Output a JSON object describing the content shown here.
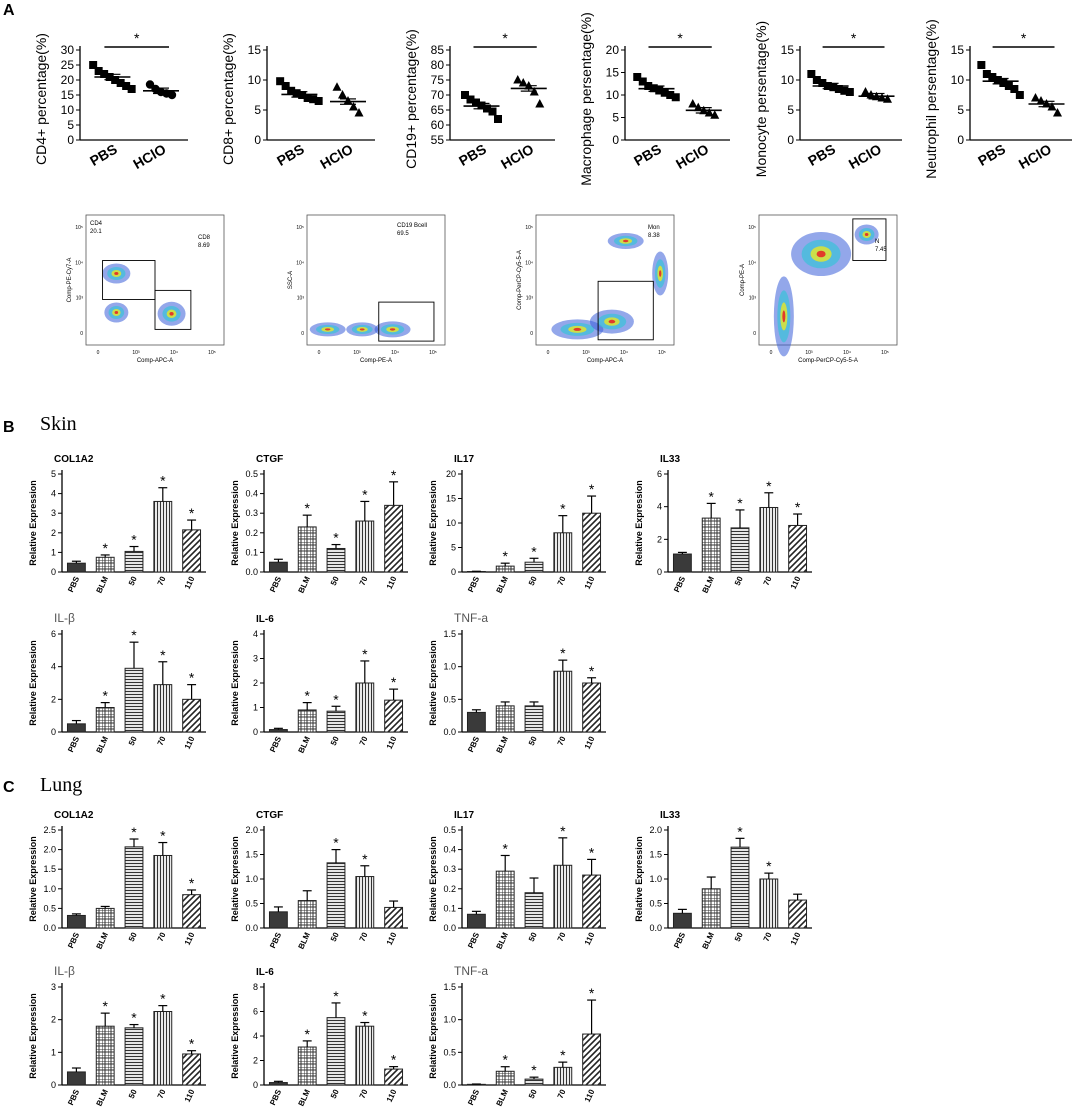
{
  "panel_labels": {
    "A": "A",
    "B": "B",
    "C": "C"
  },
  "sections": {
    "skin": "Skin",
    "lung": "Lung"
  },
  "colors": {
    "bar": "#3a3a3a",
    "axis": "#000000"
  },
  "flow_plots": [
    {
      "xlabel": "Comp-APC-A",
      "ylabel": "Comp-PE-Cy7-A",
      "gates": [
        {
          "name": "CD4",
          "value": "20.1"
        },
        {
          "name": "CD8",
          "value": "8.69"
        }
      ]
    },
    {
      "xlabel": "Comp-PE-A",
      "ylabel": "SSC-A",
      "gates": [
        {
          "name": "CD19 Bcell",
          "value": "69.5"
        }
      ]
    },
    {
      "xlabel": "Comp-APC-A",
      "ylabel": "Comp-PerCP-Cy5-5-A",
      "gates": [
        {
          "name": "Mon",
          "value": "8.38"
        }
      ]
    },
    {
      "xlabel": "Comp-PerCP-Cy5-5-A",
      "ylabel": "Comp-PE-A",
      "gates": [
        {
          "name": "N",
          "value": "7.45"
        }
      ]
    }
  ],
  "chart_data": [
    {
      "type": "scatter",
      "panel": "A",
      "ylabel": "CD4+ percentage(%)",
      "categories": [
        "PBS",
        "HClO"
      ],
      "ylim": [
        0,
        30
      ],
      "ticks": [
        0,
        5,
        10,
        15,
        20,
        25,
        30
      ],
      "significance": "*",
      "series": [
        {
          "name": "PBS",
          "marker": "square",
          "values": [
            25,
            23,
            22,
            21,
            20,
            19,
            18,
            17
          ],
          "mean": 21
        },
        {
          "name": "HClO",
          "marker": "circle",
          "values": [
            18.5,
            17,
            16,
            15.5,
            15
          ],
          "mean": 16.4
        }
      ]
    },
    {
      "type": "scatter",
      "panel": "A",
      "ylabel": "CD8+ percentage(%)",
      "categories": [
        "PBS",
        "HClO"
      ],
      "ylim": [
        0,
        15
      ],
      "ticks": [
        0,
        5,
        10,
        15
      ],
      "significance": "",
      "series": [
        {
          "name": "PBS",
          "marker": "square",
          "values": [
            9.8,
            9,
            8.2,
            7.8,
            7.5,
            7,
            6.8,
            6.5
          ],
          "mean": 7.6
        },
        {
          "name": "HClO",
          "marker": "triangle",
          "values": [
            8.8,
            7.5,
            6.5,
            5.5,
            4.5
          ],
          "mean": 6.4
        }
      ]
    },
    {
      "type": "scatter",
      "panel": "A",
      "ylabel": "CD19+ percentage(%)",
      "categories": [
        "PBS",
        "HClO"
      ],
      "ylim": [
        55,
        85
      ],
      "ticks": [
        55,
        60,
        65,
        70,
        75,
        80,
        85
      ],
      "significance": "*",
      "series": [
        {
          "name": "PBS",
          "marker": "square",
          "values": [
            70,
            68.5,
            67.5,
            66.5,
            65.5,
            64.5,
            62
          ],
          "mean": 66.3
        },
        {
          "name": "HClO",
          "marker": "triangle",
          "values": [
            75,
            74,
            73,
            71,
            67
          ],
          "mean": 72.2
        }
      ]
    },
    {
      "type": "scatter",
      "panel": "A",
      "ylabel": "Macrophage persentage(%)",
      "categories": [
        "PBS",
        "HClO"
      ],
      "ylim": [
        0,
        20
      ],
      "ticks": [
        0,
        5,
        10,
        15,
        20
      ],
      "significance": "*",
      "series": [
        {
          "name": "PBS",
          "marker": "square",
          "values": [
            14,
            13,
            12,
            11.5,
            11,
            10.5,
            10,
            9.5
          ],
          "mean": 11.4
        },
        {
          "name": "HClO",
          "marker": "triangle",
          "values": [
            8,
            7.2,
            6.5,
            6,
            5.5
          ],
          "mean": 6.6
        }
      ]
    },
    {
      "type": "scatter",
      "panel": "A",
      "ylabel": "Monocyte persentage(%)",
      "categories": [
        "PBS",
        "HClO"
      ],
      "ylim": [
        0,
        15
      ],
      "ticks": [
        0,
        5,
        10,
        15
      ],
      "significance": "*",
      "series": [
        {
          "name": "PBS",
          "marker": "square",
          "values": [
            11,
            10,
            9.5,
            9,
            8.8,
            8.5,
            8.2,
            8
          ],
          "mean": 9
        },
        {
          "name": "HClO",
          "marker": "triangle",
          "values": [
            8,
            7.5,
            7.2,
            7,
            6.8
          ],
          "mean": 7.3
        }
      ]
    },
    {
      "type": "scatter",
      "panel": "A",
      "ylabel": "Neutrophil persentage(%)",
      "categories": [
        "PBS",
        "HClO"
      ],
      "ylim": [
        0,
        15
      ],
      "ticks": [
        0,
        5,
        10,
        15
      ],
      "significance": "*",
      "series": [
        {
          "name": "PBS",
          "marker": "square",
          "values": [
            12.5,
            11,
            10.5,
            10,
            9.5,
            9,
            8.5,
            7.5
          ],
          "mean": 9.8
        },
        {
          "name": "HClO",
          "marker": "triangle",
          "values": [
            7,
            6.5,
            6,
            5.5,
            4.5
          ],
          "mean": 6
        }
      ]
    },
    {
      "type": "bar",
      "panel": "B",
      "title": "COL1A2",
      "title_style": "sans",
      "ylabel": "Relative Expression",
      "categories": [
        "PBS",
        "BLM",
        "50",
        "70",
        "110"
      ],
      "values": [
        0.45,
        0.75,
        1.05,
        3.6,
        2.15
      ],
      "errors": [
        0.1,
        0.12,
        0.25,
        0.7,
        0.5
      ],
      "ylim": [
        0,
        5
      ],
      "ticks": [
        0,
        1,
        2,
        3,
        4,
        5
      ],
      "significance": [
        "",
        "*",
        "*",
        "*",
        "*"
      ]
    },
    {
      "type": "bar",
      "panel": "B",
      "title": "CTGF",
      "title_style": "sans",
      "ylabel": "Relative Expression",
      "categories": [
        "PBS",
        "BLM",
        "50",
        "70",
        "110"
      ],
      "values": [
        0.05,
        0.23,
        0.12,
        0.26,
        0.34
      ],
      "errors": [
        0.015,
        0.06,
        0.02,
        0.1,
        0.12
      ],
      "ylim": [
        0,
        0.5
      ],
      "ticks": [
        0,
        0.1,
        0.2,
        0.3,
        0.4,
        0.5
      ],
      "significance": [
        "",
        "*",
        "*",
        "*",
        "*"
      ]
    },
    {
      "type": "bar",
      "panel": "B",
      "title": "IL17",
      "title_style": "sans",
      "ylabel": "Relative Expression",
      "categories": [
        "PBS",
        "BLM",
        "50",
        "70",
        "110"
      ],
      "values": [
        0.1,
        1.2,
        2,
        8,
        12
      ],
      "errors": [
        0.05,
        0.6,
        0.8,
        3.5,
        3.5
      ],
      "ylim": [
        0,
        20
      ],
      "ticks": [
        0,
        5,
        10,
        15,
        20
      ],
      "significance": [
        "",
        "*",
        "*",
        "*",
        "*"
      ]
    },
    {
      "type": "bar",
      "panel": "B",
      "title": "IL33",
      "title_style": "sans",
      "ylabel": "Relative Expression",
      "categories": [
        "PBS",
        "BLM",
        "50",
        "70",
        "110"
      ],
      "values": [
        1.1,
        3.3,
        2.7,
        3.95,
        2.85
      ],
      "errors": [
        0.1,
        0.9,
        1.1,
        0.9,
        0.7
      ],
      "ylim": [
        0,
        6
      ],
      "ticks": [
        0,
        2,
        4,
        6
      ],
      "significance": [
        "",
        "*",
        "*",
        "*",
        "*"
      ]
    },
    {
      "type": "bar",
      "panel": "B",
      "title": "IL-β",
      "title_style": "serif",
      "ylabel": "Relative Expression",
      "categories": [
        "PBS",
        "BLM",
        "50",
        "70",
        "110"
      ],
      "values": [
        0.5,
        1.5,
        3.9,
        2.9,
        2
      ],
      "errors": [
        0.2,
        0.3,
        1.6,
        1.4,
        0.9
      ],
      "ylim": [
        0,
        6
      ],
      "ticks": [
        0,
        2,
        4,
        6
      ],
      "significance": [
        "",
        "*",
        "*",
        "*",
        "*"
      ]
    },
    {
      "type": "bar",
      "panel": "B",
      "title": "IL-6",
      "title_style": "sans",
      "ylabel": "Relative Expression",
      "categories": [
        "PBS",
        "BLM",
        "50",
        "70",
        "110"
      ],
      "values": [
        0.1,
        0.9,
        0.85,
        2,
        1.3
      ],
      "errors": [
        0.05,
        0.3,
        0.2,
        0.9,
        0.45
      ],
      "ylim": [
        0,
        4
      ],
      "ticks": [
        0,
        1,
        2,
        3,
        4
      ],
      "significance": [
        "",
        "*",
        "*",
        "*",
        "*"
      ]
    },
    {
      "type": "bar",
      "panel": "B",
      "title": "TNF-a",
      "title_style": "serif",
      "ylabel": "Relative Expression",
      "categories": [
        "PBS",
        "BLM",
        "50",
        "70",
        "110"
      ],
      "values": [
        0.3,
        0.4,
        0.4,
        0.93,
        0.75
      ],
      "errors": [
        0.04,
        0.06,
        0.06,
        0.17,
        0.08
      ],
      "ylim": [
        0,
        1.5
      ],
      "ticks": [
        0,
        0.5,
        1.0,
        1.5
      ],
      "significance": [
        "",
        "",
        "",
        "*",
        "*"
      ]
    },
    {
      "type": "bar",
      "panel": "C",
      "title": "COL1A2",
      "title_style": "sans",
      "ylabel": "Relative Expression",
      "categories": [
        "PBS",
        "BLM",
        "50",
        "70",
        "110"
      ],
      "values": [
        0.32,
        0.5,
        2.07,
        1.85,
        0.85
      ],
      "errors": [
        0.04,
        0.05,
        0.2,
        0.33,
        0.12
      ],
      "ylim": [
        0,
        2.5
      ],
      "ticks": [
        0,
        0.5,
        1.0,
        1.5,
        2.0,
        2.5
      ],
      "significance": [
        "",
        "",
        "*",
        "*",
        "*"
      ]
    },
    {
      "type": "bar",
      "panel": "C",
      "title": "CTGF",
      "title_style": "sans",
      "ylabel": "Relative Expression",
      "categories": [
        "PBS",
        "BLM",
        "50",
        "70",
        "110"
      ],
      "values": [
        0.33,
        0.56,
        1.33,
        1.05,
        0.42
      ],
      "errors": [
        0.1,
        0.2,
        0.27,
        0.22,
        0.13
      ],
      "ylim": [
        0,
        2
      ],
      "ticks": [
        0,
        0.5,
        1.0,
        1.5,
        2.0
      ],
      "significance": [
        "",
        "",
        "*",
        "*",
        ""
      ]
    },
    {
      "type": "bar",
      "panel": "C",
      "title": "IL17",
      "title_style": "sans",
      "ylabel": "Relative Expression",
      "categories": [
        "PBS",
        "BLM",
        "50",
        "70",
        "110"
      ],
      "values": [
        0.07,
        0.29,
        0.18,
        0.32,
        0.27
      ],
      "errors": [
        0.015,
        0.08,
        0.075,
        0.14,
        0.08
      ],
      "ylim": [
        0,
        0.5
      ],
      "ticks": [
        0,
        0.1,
        0.2,
        0.3,
        0.4,
        0.5
      ],
      "significance": [
        "",
        "*",
        "",
        "*",
        "*"
      ]
    },
    {
      "type": "bar",
      "panel": "C",
      "title": "IL33",
      "title_style": "sans",
      "ylabel": "Relative Expression",
      "categories": [
        "PBS",
        "BLM",
        "50",
        "70",
        "110"
      ],
      "values": [
        0.3,
        0.8,
        1.65,
        1.0,
        0.57
      ],
      "errors": [
        0.08,
        0.24,
        0.18,
        0.12,
        0.12
      ],
      "ylim": [
        0,
        2
      ],
      "ticks": [
        0,
        0.5,
        1.0,
        1.5,
        2.0
      ],
      "significance": [
        "",
        "",
        "*",
        "*",
        ""
      ]
    },
    {
      "type": "bar",
      "panel": "C",
      "title": "IL-β",
      "title_style": "serif",
      "ylabel": "Relative Expression",
      "categories": [
        "PBS",
        "BLM",
        "50",
        "70",
        "110"
      ],
      "values": [
        0.4,
        1.8,
        1.75,
        2.25,
        0.95
      ],
      "errors": [
        0.12,
        0.4,
        0.1,
        0.18,
        0.1
      ],
      "ylim": [
        0,
        3
      ],
      "ticks": [
        0,
        1,
        2,
        3
      ],
      "significance": [
        "",
        "*",
        "*",
        "*",
        "*"
      ]
    },
    {
      "type": "bar",
      "panel": "C",
      "title": "IL-6",
      "title_style": "sans",
      "ylabel": "Relative Expression",
      "categories": [
        "PBS",
        "BLM",
        "50",
        "70",
        "110"
      ],
      "values": [
        0.2,
        3.1,
        5.5,
        4.8,
        1.3
      ],
      "errors": [
        0.1,
        0.5,
        1.2,
        0.3,
        0.2
      ],
      "ylim": [
        0,
        8
      ],
      "ticks": [
        0,
        2,
        4,
        6,
        8
      ],
      "significance": [
        "",
        "*",
        "*",
        "*",
        "*"
      ]
    },
    {
      "type": "bar",
      "panel": "C",
      "title": "TNF-a",
      "title_style": "serif",
      "ylabel": "Relative Expression",
      "categories": [
        "PBS",
        "BLM",
        "50",
        "70",
        "110"
      ],
      "values": [
        0.01,
        0.21,
        0.09,
        0.27,
        0.78
      ],
      "errors": [
        0.005,
        0.07,
        0.03,
        0.08,
        0.52
      ],
      "ylim": [
        0,
        1.5
      ],
      "ticks": [
        0,
        0.5,
        1.0,
        1.5
      ],
      "significance": [
        "",
        "*",
        "*",
        "*",
        "*"
      ]
    }
  ]
}
